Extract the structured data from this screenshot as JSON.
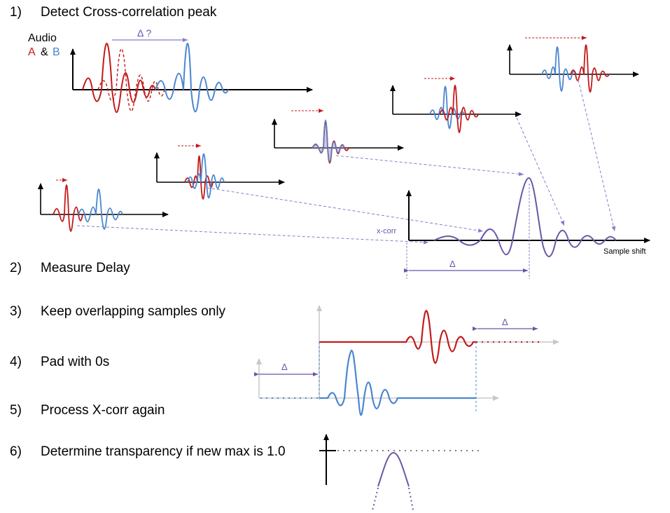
{
  "steps": [
    {
      "num": "1)",
      "text": "Detect Cross-correlation  peak"
    },
    {
      "num": "2)",
      "text": "Measure Delay"
    },
    {
      "num": "3)",
      "text": "Keep overlapping samples only"
    },
    {
      "num": "4)",
      "text": "Pad with 0s"
    },
    {
      "num": "5)",
      "text": "Process X-corr again"
    },
    {
      "num": "6)",
      "text": "Determine transparency if new max is 1.0"
    }
  ],
  "legend": {
    "title": "Audio",
    "a": "A",
    "amp": "&",
    "b": "B"
  },
  "labels": {
    "delta_question": "Δ ?",
    "delta": "Δ",
    "xcorr": "x-corr",
    "sample_shift": "Sample shift"
  },
  "colors": {
    "a": "#c41a1a",
    "b": "#4a86d0",
    "xcorr": "#6b55a8",
    "axis": "#000000",
    "faint_axis": "#c8c8c8"
  }
}
